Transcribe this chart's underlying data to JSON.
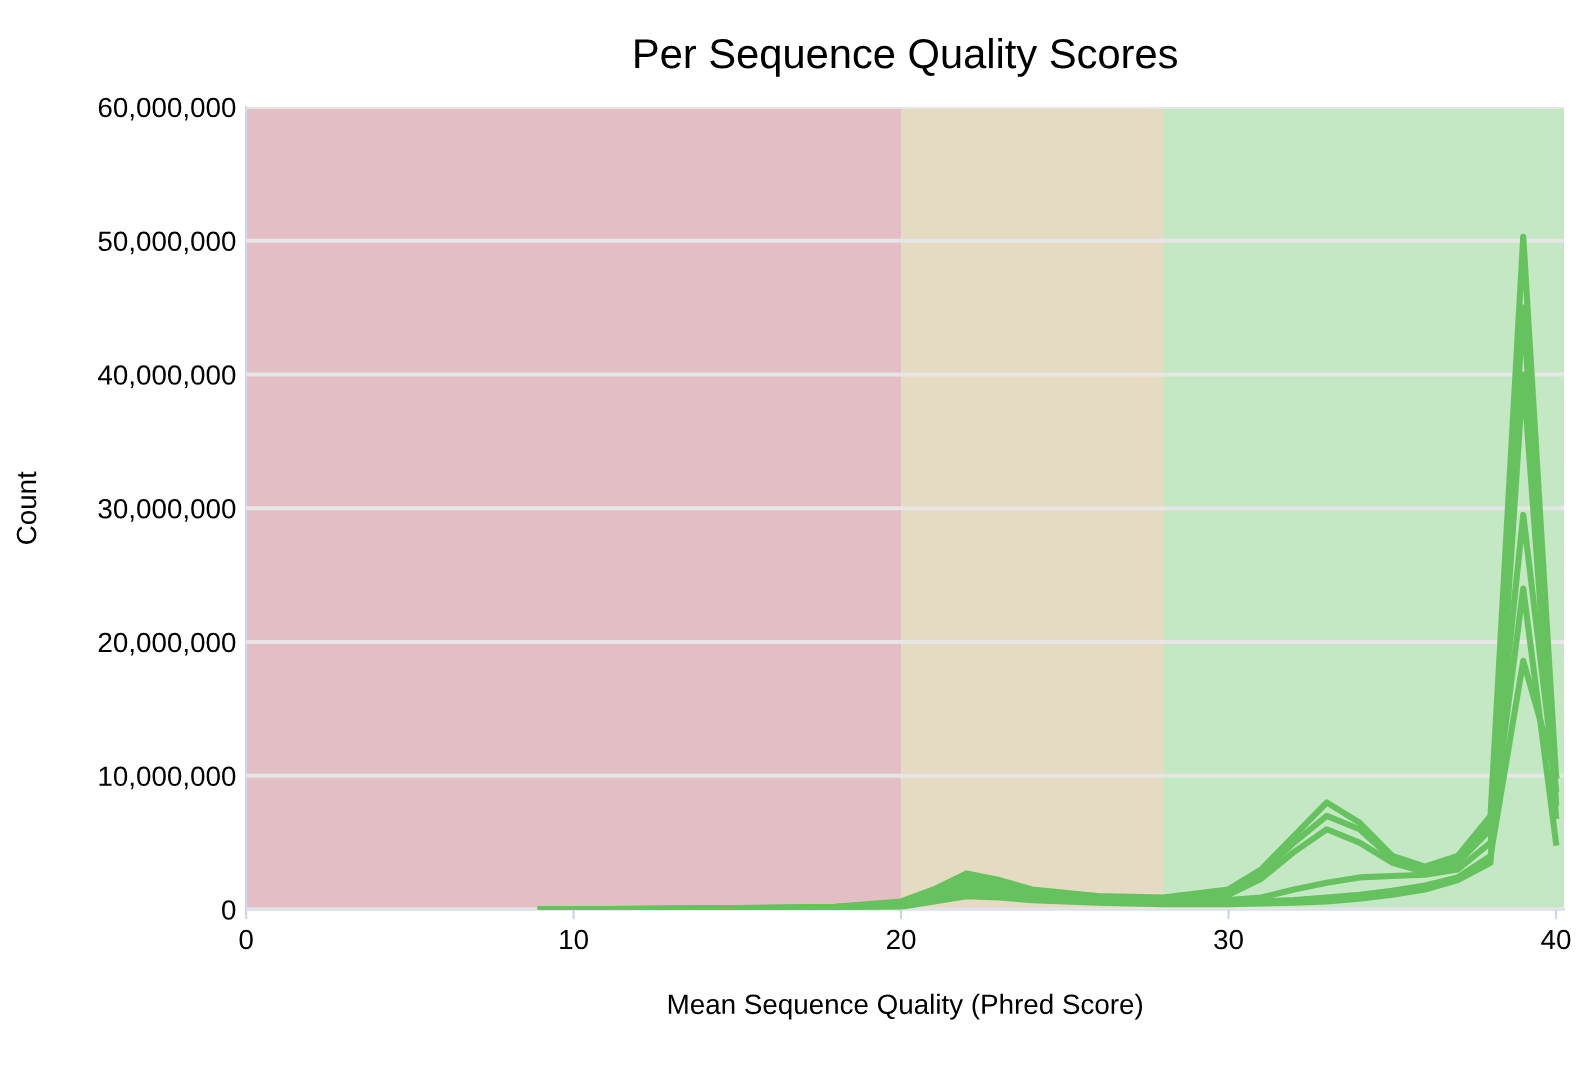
{
  "chart_data": {
    "type": "line",
    "title": "Per Sequence Quality Scores",
    "xlabel": "Mean Sequence Quality (Phred Score)",
    "ylabel": "Count",
    "x": [
      9,
      12,
      15,
      18,
      20,
      21,
      22,
      23,
      24,
      26,
      28,
      30,
      31,
      32,
      33,
      34,
      35,
      36,
      37,
      38,
      39,
      40
    ],
    "series": [
      {
        "color": "#66c25e",
        "values": [
          0,
          50000,
          100000,
          200000,
          600000,
          1500000,
          2700000,
          2200000,
          1500000,
          1000000,
          900000,
          1500000,
          3000000,
          5500000,
          8000000,
          6500000,
          4000000,
          3200000,
          4000000,
          7000000,
          50300000,
          10000000
        ]
      },
      {
        "color": "#66c25e",
        "values": [
          0,
          50000,
          100000,
          200000,
          500000,
          1300000,
          2400000,
          2000000,
          1400000,
          900000,
          800000,
          1300000,
          2700000,
          5000000,
          7000000,
          6000000,
          3800000,
          3000000,
          3800000,
          6500000,
          45000000,
          8000000
        ]
      },
      {
        "color": "#66c25e",
        "values": [
          0,
          40000,
          80000,
          150000,
          400000,
          1100000,
          2000000,
          1700000,
          1200000,
          800000,
          700000,
          1100000,
          2300000,
          4300000,
          6000000,
          5000000,
          3500000,
          2800000,
          3500000,
          6000000,
          29500000,
          9000000
        ]
      },
      {
        "color": "#66c25e",
        "values": [
          0,
          30000,
          60000,
          120000,
          300000,
          900000,
          1600000,
          1400000,
          1000000,
          700000,
          600000,
          700000,
          900000,
          1500000,
          2000000,
          2400000,
          2500000,
          2600000,
          3000000,
          5000000,
          24000000,
          5000000
        ]
      },
      {
        "color": "#66c25e",
        "values": [
          0,
          20000,
          50000,
          100000,
          250000,
          700000,
          1200000,
          1100000,
          800000,
          600000,
          500000,
          500000,
          600000,
          700000,
          900000,
          1100000,
          1400000,
          1800000,
          2400000,
          4000000,
          18600000,
          10000000
        ]
      },
      {
        "color": "#66c25e",
        "values": [
          0,
          20000,
          40000,
          80000,
          200000,
          600000,
          1000000,
          900000,
          700000,
          500000,
          400000,
          400000,
          450000,
          500000,
          600000,
          800000,
          1100000,
          1500000,
          2200000,
          3500000,
          40000000,
          7000000
        ]
      }
    ],
    "xlim": [
      0,
      40.25
    ],
    "ylim": [
      0,
      60000000
    ],
    "xticks": [
      0,
      10,
      20,
      30,
      40
    ],
    "yticks": [
      0,
      {
        "value": 10000000,
        "label": "10,000,000"
      },
      {
        "value": 20000000,
        "label": "20,000,000"
      },
      {
        "value": 30000000,
        "label": "30,000,000"
      },
      {
        "value": 40000000,
        "label": "40,000,000"
      },
      {
        "value": 50000000,
        "label": "50,000,000"
      },
      {
        "value": 60000000,
        "label": "60,000,000"
      }
    ],
    "bands": [
      {
        "axis": "x",
        "from": 0,
        "to": 20,
        "color": "#e3bfc5"
      },
      {
        "axis": "x",
        "from": 20,
        "to": 28,
        "color": "#e5dbc3"
      },
      {
        "axis": "x",
        "from": 28,
        "to": 40.25,
        "color": "#c4e8c4"
      }
    ],
    "grid": "y",
    "marker": "none",
    "line_style": "solid"
  }
}
